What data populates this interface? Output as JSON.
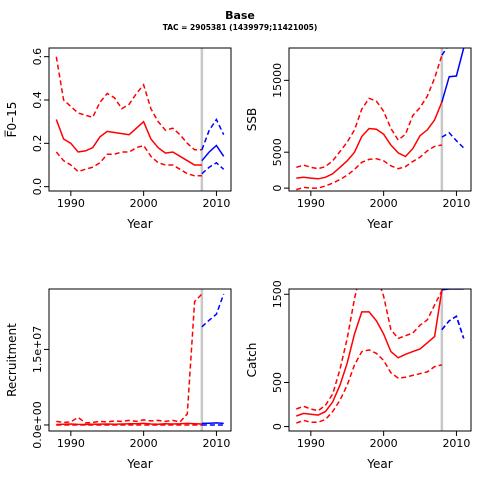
{
  "header": {
    "title": "Base",
    "subtitle": "TAC = 2905381 (1439979;11421005)"
  },
  "colors": {
    "historic": "#ff0000",
    "projection": "#0000ff",
    "marker": "#c8c8c8"
  },
  "chart_data": [
    {
      "type": "line",
      "name": "fbar",
      "xlabel": "Year",
      "ylabel": "F̅0–15",
      "xlim": [
        1987,
        2012
      ],
      "ylim": [
        -0.02,
        0.64
      ],
      "xticks": [
        1990,
        2000,
        2010
      ],
      "yticks": [
        0.0,
        0.2,
        0.4,
        0.6
      ],
      "ytick_labels": [
        "0.0",
        "0.2",
        "0.4",
        "0.6"
      ],
      "marker_year": 2008,
      "historic": {
        "x": [
          1988,
          1989,
          1990,
          1991,
          1992,
          1993,
          1994,
          1995,
          1996,
          1997,
          1998,
          1999,
          2000,
          2001,
          2002,
          2003,
          2004,
          2005,
          2006,
          2007,
          2008
        ],
        "median": [
          0.31,
          0.22,
          0.2,
          0.16,
          0.165,
          0.18,
          0.23,
          0.255,
          0.25,
          0.245,
          0.24,
          0.27,
          0.3,
          0.22,
          0.18,
          0.155,
          0.16,
          0.14,
          0.12,
          0.1,
          0.1
        ],
        "upper": [
          0.6,
          0.4,
          0.37,
          0.34,
          0.33,
          0.32,
          0.39,
          0.43,
          0.41,
          0.36,
          0.38,
          0.43,
          0.47,
          0.36,
          0.3,
          0.26,
          0.27,
          0.24,
          0.2,
          0.17,
          0.17
        ],
        "lower": [
          0.16,
          0.12,
          0.1,
          0.07,
          0.08,
          0.09,
          0.11,
          0.15,
          0.15,
          0.16,
          0.16,
          0.18,
          0.19,
          0.14,
          0.11,
          0.1,
          0.1,
          0.08,
          0.06,
          0.05,
          0.05
        ]
      },
      "projection": {
        "x": [
          2008,
          2009,
          2010,
          2011
        ],
        "median": [
          0.12,
          0.16,
          0.19,
          0.14
        ],
        "upper": [
          0.17,
          0.26,
          0.31,
          0.24
        ],
        "lower": [
          0.06,
          0.09,
          0.11,
          0.08
        ]
      }
    },
    {
      "type": "line",
      "name": "ssb",
      "xlabel": "Year",
      "ylabel": "SSB",
      "xlim": [
        1987,
        2012
      ],
      "ylim": [
        -400,
        19500
      ],
      "xticks": [
        1990,
        2000,
        2010
      ],
      "yticks": [
        0,
        5000,
        15000
      ],
      "ytick_labels": [
        "0",
        "5000",
        "15000"
      ],
      "marker_year": 2008,
      "historic": {
        "x": [
          1988,
          1989,
          1990,
          1991,
          1992,
          1993,
          1994,
          1995,
          1996,
          1997,
          1998,
          1999,
          2000,
          2001,
          2002,
          2003,
          2004,
          2005,
          2006,
          2007,
          2008
        ],
        "median": [
          1400,
          1500,
          1400,
          1300,
          1500,
          2000,
          2900,
          3800,
          5000,
          7200,
          8300,
          8200,
          7500,
          6000,
          4900,
          4400,
          5500,
          7300,
          8100,
          9500,
          12000
        ],
        "upper": [
          2900,
          3200,
          2900,
          2700,
          3000,
          3800,
          5100,
          6400,
          8100,
          11000,
          12500,
          12100,
          10700,
          8300,
          6700,
          7500,
          10100,
          11200,
          12800,
          15300,
          18500
        ],
        "lower": [
          -200,
          100,
          0,
          0,
          300,
          700,
          1200,
          1800,
          2600,
          3600,
          4000,
          4100,
          3800,
          3100,
          2700,
          3000,
          3700,
          4300,
          5200,
          5800,
          6000
        ]
      },
      "projection": {
        "x": [
          2008,
          2009,
          2010,
          2011
        ],
        "median": [
          12000,
          15500,
          15600,
          19500
        ],
        "upper": [
          18500,
          20000,
          20000,
          20000
        ],
        "lower": [
          7100,
          7700,
          6600,
          5600
        ]
      }
    },
    {
      "type": "line",
      "name": "recruitment",
      "xlabel": "Year",
      "ylabel": "Recruitment",
      "xlim": [
        1987,
        2012
      ],
      "ylim": [
        -1200000,
        27000000
      ],
      "xticks": [
        1990,
        2000,
        2010
      ],
      "yticks": [
        0,
        15000000
      ],
      "ytick_labels": [
        "0.0e+00",
        "1.5e+07"
      ],
      "marker_year": 2008,
      "historic": {
        "x": [
          1988,
          1989,
          1990,
          1991,
          1992,
          1993,
          1994,
          1995,
          1996,
          1997,
          1998,
          1999,
          2000,
          2001,
          2002,
          2003,
          2004,
          2005,
          2006,
          2007,
          2008
        ],
        "median": [
          100000,
          150000,
          200000,
          120000,
          100000,
          150000,
          180000,
          200000,
          150000,
          200000,
          220000,
          250000,
          300000,
          200000,
          150000,
          250000,
          200000,
          220000,
          300000,
          250000,
          200000
        ],
        "upper": [
          700000,
          500000,
          600000,
          1500000,
          400000,
          500000,
          700000,
          600000,
          800000,
          700000,
          900000,
          700000,
          1000000,
          800000,
          900000,
          700000,
          900000,
          600000,
          2200000,
          24500000,
          26000000
        ],
        "lower": [
          0,
          0,
          0,
          0,
          0,
          0,
          0,
          0,
          0,
          0,
          0,
          0,
          0,
          0,
          0,
          0,
          0,
          0,
          0,
          0,
          0
        ]
      },
      "projection": {
        "x": [
          2008,
          2009,
          2010,
          2011
        ],
        "median": [
          300000,
          350000,
          400000,
          300000
        ],
        "upper": [
          19500000,
          20800000,
          22000000,
          26000000
        ],
        "lower": [
          0,
          0,
          0,
          0
        ]
      }
    },
    {
      "type": "line",
      "name": "catch",
      "xlabel": "Year",
      "ylabel": "Catch",
      "xlim": [
        1987,
        2012
      ],
      "ylim": [
        -50,
        1560
      ],
      "xticks": [
        1990,
        2000,
        2010
      ],
      "yticks": [
        0,
        500,
        1500
      ],
      "ytick_labels": [
        "0",
        "500",
        "1500"
      ],
      "marker_year": 2008,
      "historic": {
        "x": [
          1988,
          1989,
          1990,
          1991,
          1992,
          1993,
          1994,
          1995,
          1996,
          1997,
          1998,
          1999,
          2000,
          2001,
          2002,
          2003,
          2004,
          2005,
          2006,
          2007,
          2008
        ],
        "median": [
          120,
          150,
          140,
          130,
          170,
          280,
          470,
          720,
          1050,
          1300,
          1300,
          1200,
          1050,
          850,
          780,
          820,
          850,
          880,
          950,
          1020,
          1550
        ],
        "upper": [
          200,
          230,
          200,
          180,
          240,
          370,
          650,
          1000,
          1450,
          1800,
          1840,
          1720,
          1480,
          1100,
          1000,
          1030,
          1060,
          1150,
          1210,
          1380,
          1540
        ],
        "lower": [
          40,
          70,
          50,
          50,
          80,
          170,
          300,
          470,
          700,
          850,
          870,
          830,
          750,
          610,
          550,
          560,
          580,
          600,
          620,
          680,
          700
        ]
      },
      "projection": {
        "x": [
          2008,
          2009,
          2010,
          2011
        ],
        "median": [
          1550,
          1560,
          1560,
          1560
        ],
        "upper": [
          1100,
          1200,
          1250,
          1000
        ],
        "lower": [
          1100,
          1200,
          1250,
          1000
        ]
      }
    }
  ]
}
